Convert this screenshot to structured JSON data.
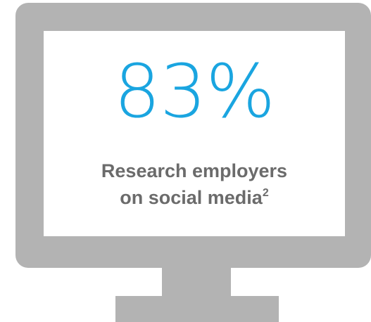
{
  "stat": {
    "value": "83%"
  },
  "caption": {
    "line1": "Research employers",
    "line2": "on social media",
    "footnote": "2"
  },
  "colors": {
    "accent": "#1aa5e0",
    "monitor": "#b3b3b3",
    "caption_text": "#6b6b6b"
  },
  "icons": {
    "device": "monitor-icon"
  }
}
